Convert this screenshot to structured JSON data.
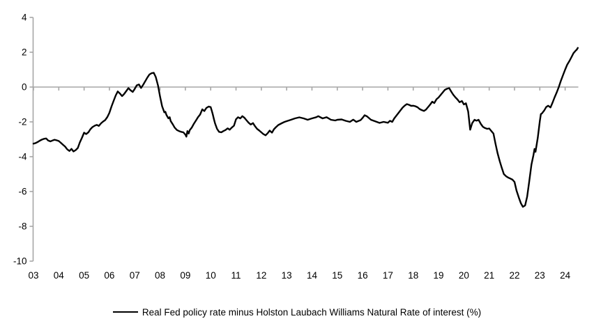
{
  "legend": {
    "label": "Real Fed policy rate minus Holston Laubach Williams Natural Rate of interest (%)"
  },
  "colors": {
    "series": "#000000",
    "axis": "#a6a6a6",
    "text": "#000000",
    "background": "#ffffff"
  },
  "chart_data": {
    "type": "line",
    "title": "",
    "xlabel": "",
    "ylabel": "",
    "grid": "zero-gridline-only",
    "legend_position": "bottom-center",
    "x_tick_labels": [
      "03",
      "04",
      "05",
      "06",
      "07",
      "08",
      "09",
      "10",
      "11",
      "12",
      "13",
      "14",
      "15",
      "16",
      "17",
      "18",
      "19",
      "20",
      "21",
      "22",
      "23",
      "24"
    ],
    "x_tick_years": [
      2003,
      2004,
      2005,
      2006,
      2007,
      2008,
      2009,
      2010,
      2011,
      2012,
      2013,
      2014,
      2015,
      2016,
      2017,
      2018,
      2019,
      2020,
      2021,
      2022,
      2023,
      2024
    ],
    "y_ticks": [
      4,
      2,
      0,
      -2,
      -4,
      -6,
      -8,
      -10
    ],
    "xlim": [
      2003,
      2024.52
    ],
    "ylim": [
      -10,
      4
    ],
    "series": [
      {
        "name": "Real Fed policy rate minus Holston Laubach Williams Natural Rate of interest (%)",
        "color": "#000000",
        "points": [
          [
            2003.0,
            -3.25
          ],
          [
            2003.08,
            -3.22
          ],
          [
            2003.17,
            -3.15
          ],
          [
            2003.25,
            -3.08
          ],
          [
            2003.33,
            -3.02
          ],
          [
            2003.42,
            -2.97
          ],
          [
            2003.5,
            -2.95
          ],
          [
            2003.58,
            -3.07
          ],
          [
            2003.67,
            -3.12
          ],
          [
            2003.75,
            -3.07
          ],
          [
            2003.83,
            -3.03
          ],
          [
            2003.92,
            -3.06
          ],
          [
            2004.0,
            -3.1
          ],
          [
            2004.08,
            -3.2
          ],
          [
            2004.17,
            -3.32
          ],
          [
            2004.25,
            -3.42
          ],
          [
            2004.33,
            -3.57
          ],
          [
            2004.42,
            -3.67
          ],
          [
            2004.5,
            -3.55
          ],
          [
            2004.58,
            -3.7
          ],
          [
            2004.67,
            -3.62
          ],
          [
            2004.75,
            -3.5
          ],
          [
            2004.83,
            -3.18
          ],
          [
            2004.92,
            -2.9
          ],
          [
            2005.0,
            -2.62
          ],
          [
            2005.08,
            -2.7
          ],
          [
            2005.17,
            -2.6
          ],
          [
            2005.25,
            -2.42
          ],
          [
            2005.33,
            -2.3
          ],
          [
            2005.42,
            -2.22
          ],
          [
            2005.5,
            -2.17
          ],
          [
            2005.58,
            -2.23
          ],
          [
            2005.67,
            -2.08
          ],
          [
            2005.75,
            -1.98
          ],
          [
            2005.83,
            -1.9
          ],
          [
            2005.92,
            -1.72
          ],
          [
            2006.0,
            -1.48
          ],
          [
            2006.08,
            -1.12
          ],
          [
            2006.17,
            -0.78
          ],
          [
            2006.25,
            -0.48
          ],
          [
            2006.33,
            -0.25
          ],
          [
            2006.42,
            -0.38
          ],
          [
            2006.5,
            -0.52
          ],
          [
            2006.58,
            -0.4
          ],
          [
            2006.67,
            -0.22
          ],
          [
            2006.75,
            -0.06
          ],
          [
            2006.83,
            -0.18
          ],
          [
            2006.92,
            -0.28
          ],
          [
            2007.0,
            -0.1
          ],
          [
            2007.08,
            0.1
          ],
          [
            2007.17,
            0.15
          ],
          [
            2007.25,
            -0.05
          ],
          [
            2007.33,
            0.12
          ],
          [
            2007.42,
            0.35
          ],
          [
            2007.5,
            0.55
          ],
          [
            2007.58,
            0.72
          ],
          [
            2007.67,
            0.8
          ],
          [
            2007.75,
            0.82
          ],
          [
            2007.83,
            0.58
          ],
          [
            2007.92,
            0.08
          ],
          [
            2008.0,
            -0.55
          ],
          [
            2008.08,
            -1.1
          ],
          [
            2008.17,
            -1.45
          ],
          [
            2008.21,
            -1.42
          ],
          [
            2008.25,
            -1.6
          ],
          [
            2008.33,
            -1.8
          ],
          [
            2008.38,
            -1.73
          ],
          [
            2008.42,
            -1.95
          ],
          [
            2008.5,
            -2.13
          ],
          [
            2008.58,
            -2.33
          ],
          [
            2008.67,
            -2.47
          ],
          [
            2008.75,
            -2.53
          ],
          [
            2008.83,
            -2.57
          ],
          [
            2008.92,
            -2.6
          ],
          [
            2009.0,
            -2.73
          ],
          [
            2009.04,
            -2.85
          ],
          [
            2009.08,
            -2.53
          ],
          [
            2009.13,
            -2.67
          ],
          [
            2009.17,
            -2.48
          ],
          [
            2009.25,
            -2.33
          ],
          [
            2009.33,
            -2.12
          ],
          [
            2009.42,
            -1.92
          ],
          [
            2009.5,
            -1.73
          ],
          [
            2009.58,
            -1.58
          ],
          [
            2009.67,
            -1.28
          ],
          [
            2009.75,
            -1.38
          ],
          [
            2009.83,
            -1.2
          ],
          [
            2009.92,
            -1.12
          ],
          [
            2010.0,
            -1.15
          ],
          [
            2010.04,
            -1.35
          ],
          [
            2010.08,
            -1.55
          ],
          [
            2010.13,
            -1.85
          ],
          [
            2010.17,
            -2.08
          ],
          [
            2010.25,
            -2.4
          ],
          [
            2010.33,
            -2.57
          ],
          [
            2010.42,
            -2.6
          ],
          [
            2010.5,
            -2.53
          ],
          [
            2010.58,
            -2.47
          ],
          [
            2010.67,
            -2.37
          ],
          [
            2010.75,
            -2.45
          ],
          [
            2010.83,
            -2.33
          ],
          [
            2010.92,
            -2.22
          ],
          [
            2011.0,
            -1.85
          ],
          [
            2011.08,
            -1.73
          ],
          [
            2011.17,
            -1.8
          ],
          [
            2011.25,
            -1.67
          ],
          [
            2011.33,
            -1.76
          ],
          [
            2011.42,
            -1.92
          ],
          [
            2011.5,
            -2.05
          ],
          [
            2011.58,
            -2.15
          ],
          [
            2011.67,
            -2.07
          ],
          [
            2011.75,
            -2.25
          ],
          [
            2011.83,
            -2.4
          ],
          [
            2011.92,
            -2.5
          ],
          [
            2012.0,
            -2.6
          ],
          [
            2012.08,
            -2.7
          ],
          [
            2012.17,
            -2.77
          ],
          [
            2012.25,
            -2.65
          ],
          [
            2012.33,
            -2.5
          ],
          [
            2012.42,
            -2.62
          ],
          [
            2012.5,
            -2.42
          ],
          [
            2012.58,
            -2.3
          ],
          [
            2012.67,
            -2.18
          ],
          [
            2012.75,
            -2.12
          ],
          [
            2012.83,
            -2.06
          ],
          [
            2012.92,
            -2.0
          ],
          [
            2013.0,
            -1.96
          ],
          [
            2013.17,
            -1.88
          ],
          [
            2013.33,
            -1.8
          ],
          [
            2013.5,
            -1.74
          ],
          [
            2013.67,
            -1.8
          ],
          [
            2013.83,
            -1.88
          ],
          [
            2014.0,
            -1.8
          ],
          [
            2014.17,
            -1.73
          ],
          [
            2014.25,
            -1.67
          ],
          [
            2014.42,
            -1.8
          ],
          [
            2014.58,
            -1.73
          ],
          [
            2014.75,
            -1.88
          ],
          [
            2014.92,
            -1.92
          ],
          [
            2015.0,
            -1.88
          ],
          [
            2015.17,
            -1.86
          ],
          [
            2015.33,
            -1.94
          ],
          [
            2015.5,
            -2.0
          ],
          [
            2015.63,
            -1.87
          ],
          [
            2015.75,
            -2.0
          ],
          [
            2015.92,
            -1.9
          ],
          [
            2016.0,
            -1.77
          ],
          [
            2016.08,
            -1.62
          ],
          [
            2016.17,
            -1.68
          ],
          [
            2016.33,
            -1.88
          ],
          [
            2016.5,
            -1.97
          ],
          [
            2016.67,
            -2.06
          ],
          [
            2016.83,
            -2.0
          ],
          [
            2017.0,
            -2.05
          ],
          [
            2017.08,
            -1.94
          ],
          [
            2017.17,
            -2.0
          ],
          [
            2017.25,
            -1.8
          ],
          [
            2017.33,
            -1.65
          ],
          [
            2017.42,
            -1.48
          ],
          [
            2017.5,
            -1.33
          ],
          [
            2017.58,
            -1.18
          ],
          [
            2017.67,
            -1.06
          ],
          [
            2017.75,
            -0.98
          ],
          [
            2017.83,
            -1.02
          ],
          [
            2017.92,
            -1.08
          ],
          [
            2018.0,
            -1.07
          ],
          [
            2018.08,
            -1.1
          ],
          [
            2018.17,
            -1.16
          ],
          [
            2018.25,
            -1.26
          ],
          [
            2018.33,
            -1.32
          ],
          [
            2018.42,
            -1.37
          ],
          [
            2018.5,
            -1.3
          ],
          [
            2018.58,
            -1.16
          ],
          [
            2018.67,
            -1.0
          ],
          [
            2018.75,
            -0.84
          ],
          [
            2018.83,
            -0.92
          ],
          [
            2018.92,
            -0.7
          ],
          [
            2019.0,
            -0.6
          ],
          [
            2019.08,
            -0.46
          ],
          [
            2019.17,
            -0.3
          ],
          [
            2019.25,
            -0.16
          ],
          [
            2019.33,
            -0.1
          ],
          [
            2019.42,
            -0.06
          ],
          [
            2019.5,
            -0.26
          ],
          [
            2019.58,
            -0.44
          ],
          [
            2019.67,
            -0.6
          ],
          [
            2019.75,
            -0.72
          ],
          [
            2019.83,
            -0.87
          ],
          [
            2019.92,
            -0.8
          ],
          [
            2020.0,
            -1.0
          ],
          [
            2020.08,
            -0.93
          ],
          [
            2020.17,
            -1.4
          ],
          [
            2020.25,
            -2.45
          ],
          [
            2020.33,
            -2.07
          ],
          [
            2020.42,
            -1.88
          ],
          [
            2020.5,
            -1.93
          ],
          [
            2020.58,
            -1.88
          ],
          [
            2020.67,
            -2.12
          ],
          [
            2020.75,
            -2.28
          ],
          [
            2020.83,
            -2.35
          ],
          [
            2020.92,
            -2.4
          ],
          [
            2021.0,
            -2.38
          ],
          [
            2021.08,
            -2.52
          ],
          [
            2021.17,
            -2.67
          ],
          [
            2021.25,
            -3.25
          ],
          [
            2021.33,
            -3.8
          ],
          [
            2021.42,
            -4.27
          ],
          [
            2021.5,
            -4.65
          ],
          [
            2021.58,
            -5.0
          ],
          [
            2021.67,
            -5.13
          ],
          [
            2021.75,
            -5.2
          ],
          [
            2021.83,
            -5.25
          ],
          [
            2021.92,
            -5.32
          ],
          [
            2022.0,
            -5.45
          ],
          [
            2022.08,
            -5.95
          ],
          [
            2022.17,
            -6.35
          ],
          [
            2022.25,
            -6.67
          ],
          [
            2022.33,
            -6.88
          ],
          [
            2022.42,
            -6.8
          ],
          [
            2022.5,
            -6.3
          ],
          [
            2022.58,
            -5.45
          ],
          [
            2022.67,
            -4.45
          ],
          [
            2022.75,
            -3.9
          ],
          [
            2022.79,
            -3.55
          ],
          [
            2022.83,
            -3.72
          ],
          [
            2022.92,
            -2.9
          ],
          [
            2023.0,
            -1.95
          ],
          [
            2023.04,
            -1.55
          ],
          [
            2023.08,
            -1.52
          ],
          [
            2023.17,
            -1.35
          ],
          [
            2023.25,
            -1.15
          ],
          [
            2023.33,
            -1.07
          ],
          [
            2023.42,
            -1.17
          ],
          [
            2023.5,
            -0.9
          ],
          [
            2023.58,
            -0.6
          ],
          [
            2023.67,
            -0.3
          ],
          [
            2023.75,
            0.0
          ],
          [
            2023.83,
            0.35
          ],
          [
            2023.92,
            0.7
          ],
          [
            2024.0,
            1.0
          ],
          [
            2024.08,
            1.28
          ],
          [
            2024.17,
            1.5
          ],
          [
            2024.25,
            1.72
          ],
          [
            2024.33,
            1.95
          ],
          [
            2024.42,
            2.1
          ],
          [
            2024.46,
            2.15
          ],
          [
            2024.5,
            2.25
          ]
        ]
      }
    ]
  }
}
